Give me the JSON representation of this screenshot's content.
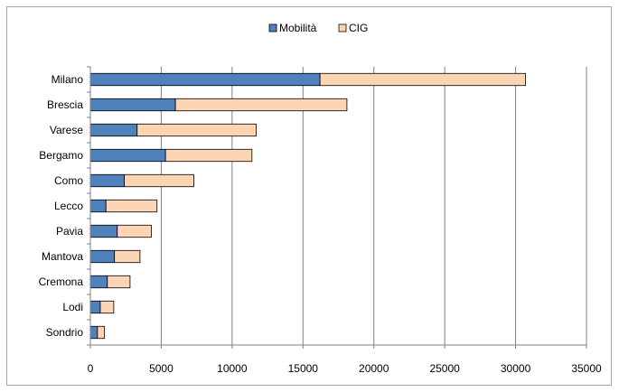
{
  "chart_data": {
    "type": "bar",
    "orientation": "horizontal",
    "stacked": true,
    "title": "",
    "xlabel": "",
    "ylabel": "",
    "categories": [
      "Milano",
      "Brescia",
      "Varese",
      "Bergamo",
      "Como",
      "Lecco",
      "Pavia",
      "Mantova",
      "Cremona",
      "Lodi",
      "Sondrio"
    ],
    "series": [
      {
        "name": "Mobilità",
        "color": "#4f81bd",
        "values": [
          16200,
          6000,
          3300,
          5300,
          2400,
          1100,
          1900,
          1700,
          1200,
          700,
          500
        ]
      },
      {
        "name": "CIG",
        "color": "#fcd5b4",
        "values": [
          14500,
          12100,
          8400,
          6100,
          4900,
          3600,
          2400,
          1800,
          1600,
          950,
          500
        ]
      }
    ],
    "xlim": [
      0,
      35000
    ],
    "xticks": [
      "0",
      "5000",
      "10000",
      "15000",
      "20000",
      "25000",
      "30000",
      "35000"
    ],
    "xtick_values": [
      0,
      5000,
      10000,
      15000,
      20000,
      25000,
      30000,
      35000
    ],
    "grid": "vertical",
    "legend_position": "top"
  }
}
